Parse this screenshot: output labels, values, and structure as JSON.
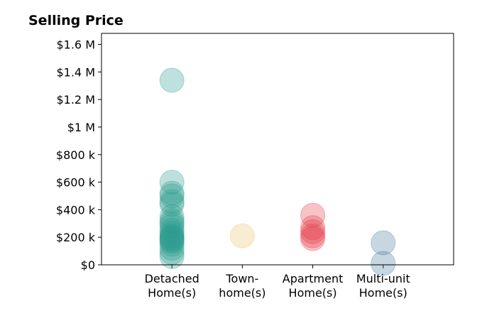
{
  "chart_data": {
    "type": "scatter",
    "title": "Selling Price",
    "xlim": [
      0,
      5
    ],
    "xticks": [
      {
        "value": 1,
        "label": "Detached\nHome(s)"
      },
      {
        "value": 2,
        "label": "Town-\nhome(s)"
      },
      {
        "value": 3,
        "label": "Apartment\nHome(s)"
      },
      {
        "value": 4,
        "label": "Multi-unit\nHome(s)"
      }
    ],
    "ylim": [
      0,
      1680000
    ],
    "yticks": [
      {
        "value": 0,
        "label": "$0"
      },
      {
        "value": 200000,
        "label": "$200 k"
      },
      {
        "value": 400000,
        "label": "$400 k"
      },
      {
        "value": 600000,
        "label": "$600 k"
      },
      {
        "value": 800000,
        "label": "$800 k"
      },
      {
        "value": 1000000,
        "label": "$1 M"
      },
      {
        "value": 1200000,
        "label": "$1.2 M"
      },
      {
        "value": 1400000,
        "label": "$1.4 M"
      },
      {
        "value": 1600000,
        "label": "$1.6 M"
      }
    ],
    "series": [
      {
        "color": "#2a9d8f",
        "x": [
          1,
          1,
          1,
          1,
          1,
          1,
          1,
          1,
          1,
          1,
          1,
          1,
          1,
          1,
          1,
          1,
          1,
          1,
          1,
          1,
          1
        ],
        "values": [
          1340000,
          600000,
          520000,
          500000,
          460000,
          440000,
          350000,
          320000,
          300000,
          280000,
          250000,
          230000,
          210000,
          200000,
          190000,
          180000,
          170000,
          150000,
          120000,
          90000,
          60000
        ]
      },
      {
        "color": "#e9c46a",
        "x": [
          2
        ],
        "values": [
          210000
        ]
      },
      {
        "color": "#e63946",
        "x": [
          3,
          3,
          3,
          3,
          3
        ],
        "values": [
          360000,
          270000,
          240000,
          210000,
          190000
        ]
      },
      {
        "color": "#457b9d",
        "x": [
          4,
          4
        ],
        "values": [
          160000,
          10000
        ]
      }
    ]
  }
}
